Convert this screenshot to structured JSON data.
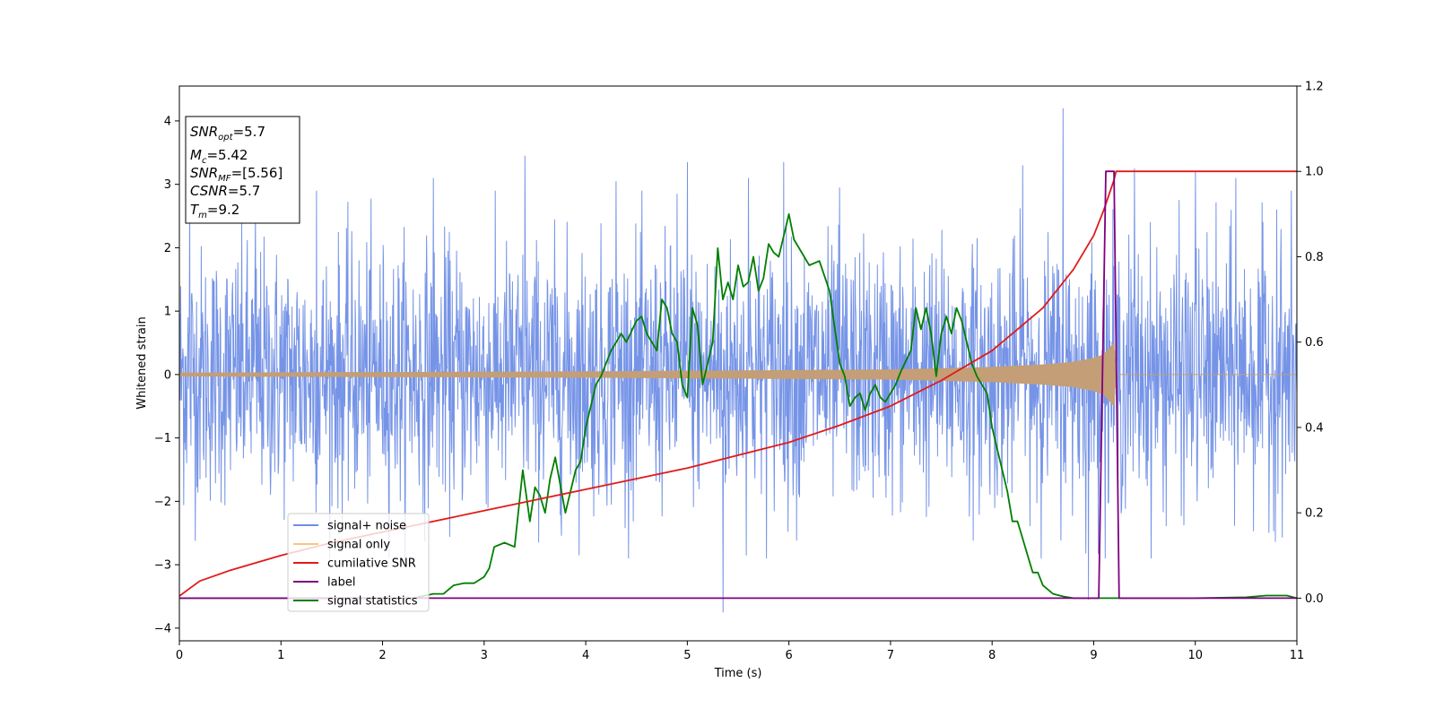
{
  "chart_data": {
    "type": "line",
    "title": "",
    "xlabel": "Time (s)",
    "ylabel": "Whitened strain",
    "ylabel_right": "",
    "xlim": [
      0,
      11
    ],
    "ylim": [
      -4.2,
      4.55
    ],
    "ylim_right": [
      -0.1,
      1.2
    ],
    "xticks": [
      "0",
      "1",
      "2",
      "3",
      "4",
      "5",
      "6",
      "7",
      "8",
      "9",
      "10",
      "11"
    ],
    "yticks": [
      "−4",
      "−3",
      "−2",
      "−1",
      "0",
      "1",
      "2",
      "3",
      "4"
    ],
    "yticks_right": [
      "0.0",
      "0.2",
      "0.4",
      "0.6",
      "0.8",
      "1.0",
      "1.2"
    ],
    "grid": false,
    "legend_position": "lower-left",
    "legend": [
      {
        "label": "signal+ noise",
        "color": "#6f8ee6"
      },
      {
        "label": "signal only",
        "color": "#f6c87e"
      },
      {
        "label": "cumilative SNR",
        "color": "#e11a1a"
      },
      {
        "label": "label",
        "color": "#800080"
      },
      {
        "label": "signal statistics",
        "color": "#007f00"
      }
    ],
    "info_box": {
      "snr_opt": {
        "base": "SNR",
        "sub": "opt",
        "value": "=5.7"
      },
      "mc": {
        "base": "M",
        "sub": "c",
        "value": "=5.42"
      },
      "snr_mf": {
        "base": "SNR",
        "sub": "MF",
        "value": "=[5.56]"
      },
      "csnr": {
        "base": "CSNR",
        "sub": "",
        "value": "=5.7"
      },
      "tm": {
        "base": "T",
        "sub": "m",
        "value": "=9.2"
      }
    },
    "series": [
      {
        "name": "signal+ noise",
        "axis": "left",
        "color": "#6f8ee6",
        "approximate_noise": {
          "sigma": 1.0,
          "range": [
            0,
            11
          ],
          "samples": 2600
        },
        "peaks": [
          [
            0.1,
            2.7
          ],
          [
            0.75,
            2.55
          ],
          [
            1.35,
            2.9
          ],
          [
            2.5,
            3.1
          ],
          [
            3.4,
            3.45
          ],
          [
            4.3,
            3.05
          ],
          [
            4.9,
            2.85
          ],
          [
            5.0,
            3.35
          ],
          [
            5.35,
            -3.75
          ],
          [
            5.6,
            3.1
          ],
          [
            5.95,
            3.35
          ],
          [
            6.5,
            2.95
          ],
          [
            8.3,
            3.3
          ],
          [
            8.7,
            4.2
          ],
          [
            8.95,
            -3.55
          ],
          [
            9.4,
            3.25
          ],
          [
            10.0,
            3.2
          ],
          [
            10.4,
            3.1
          ],
          [
            10.8,
            2.6
          ]
        ]
      },
      {
        "name": "signal only",
        "axis": "left",
        "color": "#f6c87e",
        "envelope": [
          [
            0,
            0.03
          ],
          [
            2,
            0.04
          ],
          [
            4,
            0.05
          ],
          [
            5,
            0.06
          ],
          [
            6,
            0.07
          ],
          [
            7,
            0.08
          ],
          [
            8,
            0.12
          ],
          [
            8.5,
            0.16
          ],
          [
            8.8,
            0.2
          ],
          [
            9.0,
            0.26
          ],
          [
            9.1,
            0.32
          ],
          [
            9.2,
            0.5
          ],
          [
            9.22,
            0.0
          ],
          [
            11,
            0.0
          ]
        ]
      },
      {
        "name": "cumilative SNR",
        "axis": "right",
        "color": "#e11a1a",
        "x": [
          0,
          0.2,
          0.5,
          1,
          1.5,
          2,
          2.5,
          3,
          3.5,
          4,
          4.5,
          5,
          5.5,
          6,
          6.5,
          7,
          7.5,
          8,
          8.5,
          8.8,
          9.0,
          9.1,
          9.2,
          9.22,
          11
        ],
        "y": [
          0.005,
          0.04,
          0.065,
          0.1,
          0.13,
          0.155,
          0.18,
          0.205,
          0.23,
          0.255,
          0.28,
          0.305,
          0.335,
          0.365,
          0.405,
          0.45,
          0.51,
          0.58,
          0.68,
          0.77,
          0.85,
          0.91,
          0.98,
          1.0,
          1.0
        ]
      },
      {
        "name": "label",
        "axis": "right",
        "color": "#800080",
        "x": [
          0,
          9.05,
          9.12,
          9.2,
          9.25,
          11
        ],
        "y": [
          0,
          0,
          1.0,
          1.0,
          0,
          0
        ]
      },
      {
        "name": "signal statistics",
        "axis": "right",
        "color": "#007f00",
        "x": [
          0,
          2.3,
          2.4,
          2.5,
          2.6,
          2.7,
          2.8,
          2.9,
          3.0,
          3.05,
          3.1,
          3.2,
          3.3,
          3.38,
          3.45,
          3.5,
          3.55,
          3.6,
          3.65,
          3.7,
          3.8,
          3.9,
          3.95,
          4.0,
          4.05,
          4.1,
          4.15,
          4.2,
          4.25,
          4.3,
          4.35,
          4.4,
          4.5,
          4.55,
          4.6,
          4.7,
          4.75,
          4.8,
          4.85,
          4.9,
          4.95,
          5.0,
          5.05,
          5.1,
          5.15,
          5.2,
          5.25,
          5.3,
          5.35,
          5.4,
          5.45,
          5.5,
          5.55,
          5.6,
          5.65,
          5.7,
          5.75,
          5.8,
          5.85,
          5.9,
          5.95,
          6.0,
          6.05,
          6.1,
          6.2,
          6.3,
          6.4,
          6.5,
          6.55,
          6.6,
          6.65,
          6.7,
          6.75,
          6.8,
          6.85,
          6.9,
          6.95,
          7.0,
          7.05,
          7.1,
          7.2,
          7.25,
          7.3,
          7.35,
          7.4,
          7.45,
          7.5,
          7.55,
          7.6,
          7.65,
          7.7,
          7.75,
          7.8,
          7.85,
          7.9,
          7.95,
          8.0,
          8.05,
          8.1,
          8.15,
          8.2,
          8.25,
          8.3,
          8.35,
          8.4,
          8.45,
          8.5,
          8.6,
          8.7,
          8.8,
          9.0,
          9.5,
          10.0,
          10.5,
          10.7,
          10.9,
          11.0
        ],
        "y": [
          0,
          0,
          0.005,
          0.01,
          0.01,
          0.03,
          0.035,
          0.035,
          0.05,
          0.07,
          0.12,
          0.13,
          0.12,
          0.3,
          0.18,
          0.26,
          0.24,
          0.2,
          0.28,
          0.33,
          0.2,
          0.3,
          0.32,
          0.4,
          0.45,
          0.5,
          0.52,
          0.55,
          0.58,
          0.6,
          0.62,
          0.6,
          0.65,
          0.66,
          0.62,
          0.58,
          0.7,
          0.68,
          0.62,
          0.6,
          0.5,
          0.47,
          0.68,
          0.64,
          0.5,
          0.55,
          0.6,
          0.82,
          0.7,
          0.74,
          0.7,
          0.78,
          0.73,
          0.74,
          0.8,
          0.72,
          0.75,
          0.83,
          0.81,
          0.8,
          0.85,
          0.9,
          0.84,
          0.82,
          0.78,
          0.79,
          0.72,
          0.55,
          0.52,
          0.45,
          0.47,
          0.48,
          0.44,
          0.48,
          0.5,
          0.47,
          0.46,
          0.48,
          0.5,
          0.53,
          0.58,
          0.68,
          0.63,
          0.68,
          0.62,
          0.52,
          0.62,
          0.66,
          0.62,
          0.68,
          0.65,
          0.6,
          0.55,
          0.52,
          0.5,
          0.48,
          0.4,
          0.35,
          0.3,
          0.25,
          0.18,
          0.18,
          0.14,
          0.1,
          0.06,
          0.06,
          0.03,
          0.01,
          0.004,
          0.0,
          0.0,
          0.0,
          0.0,
          0.002,
          0.006,
          0.006,
          0.0
        ]
      }
    ]
  }
}
